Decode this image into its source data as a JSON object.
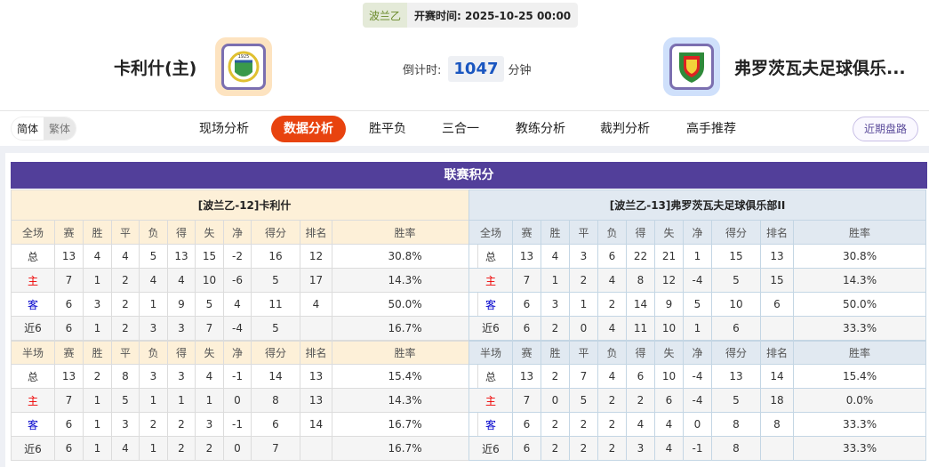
{
  "match": {
    "league": "波兰乙",
    "kickoff_label": "开赛时间:",
    "kickoff_time": "2025-10-25 00:00",
    "countdown_label": "倒计时:",
    "countdown_value": "1047",
    "countdown_unit": "分钟"
  },
  "home_team": {
    "name": "卡利什(主)",
    "logo_text": "1925 KKS KALISZ"
  },
  "away_team": {
    "name": "弗罗茨瓦夫足球俱乐...",
    "logo_text": "WKS"
  },
  "lang": {
    "simplified": "简体",
    "traditional": "繁体"
  },
  "tabs": [
    "现场分析",
    "数据分析",
    "胜平负",
    "三合一",
    "教练分析",
    "裁判分析",
    "高手推荐"
  ],
  "active_tab": "数据分析",
  "recent_button": "近期盘路",
  "standings": {
    "title": "联赛积分",
    "columns": [
      "赛",
      "胜",
      "平",
      "负",
      "得",
      "失",
      "净",
      "得分",
      "排名",
      "胜率"
    ],
    "full_label": "全场",
    "half_label": "半场",
    "teams": [
      {
        "header": "[波兰乙-12]卡利什",
        "full": [
          [
            "总",
            "13",
            "4",
            "4",
            "5",
            "13",
            "15",
            "-2",
            "16",
            "12",
            "30.8%"
          ],
          [
            "主",
            "7",
            "1",
            "2",
            "4",
            "4",
            "10",
            "-6",
            "5",
            "17",
            "14.3%"
          ],
          [
            "客",
            "6",
            "3",
            "2",
            "1",
            "9",
            "5",
            "4",
            "11",
            "4",
            "50.0%"
          ],
          [
            "近6",
            "6",
            "1",
            "2",
            "3",
            "3",
            "7",
            "-4",
            "5",
            "",
            "16.7%"
          ]
        ],
        "half": [
          [
            "总",
            "13",
            "2",
            "8",
            "3",
            "3",
            "4",
            "-1",
            "14",
            "13",
            "15.4%"
          ],
          [
            "主",
            "7",
            "1",
            "5",
            "1",
            "1",
            "1",
            "0",
            "8",
            "13",
            "14.3%"
          ],
          [
            "客",
            "6",
            "1",
            "3",
            "2",
            "2",
            "3",
            "-1",
            "6",
            "14",
            "16.7%"
          ],
          [
            "近6",
            "6",
            "1",
            "4",
            "1",
            "2",
            "2",
            "0",
            "7",
            "",
            "16.7%"
          ]
        ]
      },
      {
        "header": "[波兰乙-13]弗罗茨瓦夫足球俱乐部II",
        "full": [
          [
            "总",
            "13",
            "4",
            "3",
            "6",
            "22",
            "21",
            "1",
            "15",
            "13",
            "30.8%"
          ],
          [
            "主",
            "7",
            "1",
            "2",
            "4",
            "8",
            "12",
            "-4",
            "5",
            "15",
            "14.3%"
          ],
          [
            "客",
            "6",
            "3",
            "1",
            "2",
            "14",
            "9",
            "5",
            "10",
            "6",
            "50.0%"
          ],
          [
            "近6",
            "6",
            "2",
            "0",
            "4",
            "11",
            "10",
            "1",
            "6",
            "",
            "33.3%"
          ]
        ],
        "half": [
          [
            "总",
            "13",
            "2",
            "7",
            "4",
            "6",
            "10",
            "-4",
            "13",
            "14",
            "15.4%"
          ],
          [
            "主",
            "7",
            "0",
            "5",
            "2",
            "2",
            "6",
            "-4",
            "5",
            "18",
            "0.0%"
          ],
          [
            "客",
            "6",
            "2",
            "2",
            "2",
            "4",
            "4",
            "0",
            "8",
            "8",
            "33.3%"
          ],
          [
            "近6",
            "6",
            "2",
            "2",
            "2",
            "3",
            "4",
            "-1",
            "8",
            "",
            "33.3%"
          ]
        ]
      }
    ]
  },
  "colors": {
    "header": "#523f9a",
    "active_tab": "#e8430f",
    "home": "#ee0000",
    "away": "#0000cc"
  }
}
